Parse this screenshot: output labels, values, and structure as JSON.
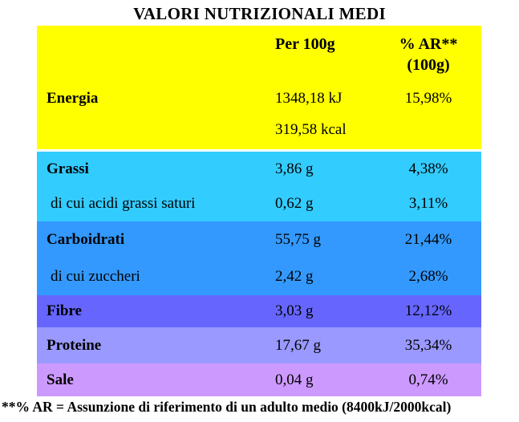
{
  "title": "VALORI NUTRIZIONALI MEDI",
  "header": {
    "per100g": "Per 100g",
    "ar_line1": "% AR**",
    "ar_line2": "(100g)"
  },
  "rows": {
    "energia": {
      "label": "Energia",
      "value_kj": "1348,18 kJ",
      "value_kcal": "319,58 kcal",
      "ar": "15,98%"
    },
    "grassi": {
      "label": "Grassi",
      "value": "3,86 g",
      "ar": "4,38%"
    },
    "grassi_saturi": {
      "label": "di cui acidi grassi saturi",
      "value": "0,62 g",
      "ar": "3,11%"
    },
    "carboidrati": {
      "label": "Carboidrati",
      "value": "55,75 g",
      "ar": "21,44%"
    },
    "zuccheri": {
      "label": "di cui zuccheri",
      "value": "2,42 g",
      "ar": "2,68%"
    },
    "fibre": {
      "label": "Fibre",
      "value": "3,03 g",
      "ar": "12,12%"
    },
    "proteine": {
      "label": "Proteine",
      "value": "17,67 g",
      "ar": "35,34%"
    },
    "sale": {
      "label": "Sale",
      "value": "0,04 g",
      "ar": "0,74%"
    }
  },
  "footnote": "**% AR = Assunzione di riferimento di un adulto medio (8400kJ/2000kcal)",
  "colors": {
    "row-energia": "#FFFF00",
    "row-grassi": "#33CCFF",
    "row-carboidrati": "#3399FF",
    "row-fibre": "#6666FF",
    "row-proteine": "#9999FF",
    "row-sale": "#CC99FF",
    "text": "#000000"
  }
}
